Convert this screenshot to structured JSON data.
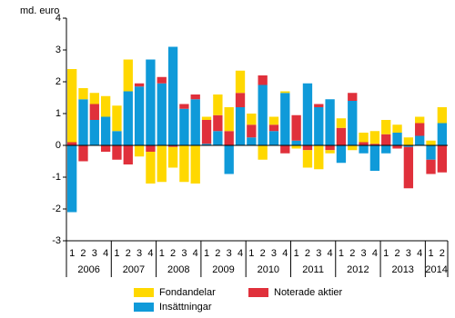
{
  "chart_data": {
    "type": "stacked-bar",
    "y_label": "md. euro",
    "categories": [
      "1",
      "2",
      "3",
      "4",
      "1",
      "2",
      "3",
      "4",
      "1",
      "2",
      "3",
      "4",
      "1",
      "2",
      "3",
      "4",
      "1",
      "2",
      "3",
      "4",
      "1",
      "2",
      "3",
      "4",
      "1",
      "2",
      "3",
      "4",
      "1",
      "2",
      "3",
      "4",
      "1",
      "2"
    ],
    "years": [
      "2006",
      "2007",
      "2008",
      "2009",
      "2010",
      "2011",
      "2012",
      "2013",
      "2014"
    ],
    "series": [
      {
        "name": "Insättningar",
        "color": "#0f9ad9",
        "values": [
          -2.1,
          1.45,
          0.8,
          0.9,
          0.45,
          1.7,
          1.85,
          2.7,
          1.95,
          3.1,
          1.15,
          1.45,
          0.05,
          0.45,
          -0.9,
          1.2,
          0.25,
          1.9,
          0.45,
          1.65,
          0.15,
          1.95,
          1.2,
          1.45,
          -0.55,
          1.4,
          -0.25,
          -0.8,
          -0.25,
          0.4,
          -0.05,
          0.3,
          -0.45,
          0.7
        ]
      },
      {
        "name": "Noterade aktier",
        "color": "#e0303b",
        "values": [
          0.1,
          -0.5,
          0.5,
          -0.2,
          -0.45,
          -0.6,
          0.1,
          -0.2,
          0.2,
          -0.05,
          0.15,
          0.15,
          0.75,
          0.5,
          0.45,
          0.45,
          0.4,
          0.3,
          0.2,
          -0.25,
          0.8,
          -0.15,
          0.1,
          -0.15,
          0.55,
          0.25,
          0.1,
          0.05,
          0.35,
          -0.1,
          -1.3,
          0.4,
          -0.45,
          -0.85
        ]
      },
      {
        "name": "Fondandelar",
        "color": "#ffd800",
        "values": [
          2.3,
          0.35,
          0.35,
          0.65,
          0.8,
          1.0,
          -0.35,
          -1.0,
          -1.15,
          -0.65,
          -1.15,
          -1.2,
          0.1,
          0.65,
          0.75,
          0.7,
          0.35,
          -0.45,
          0.25,
          0.05,
          -0.1,
          -0.55,
          -0.75,
          -0.1,
          0.3,
          -0.15,
          0.3,
          0.4,
          0.45,
          0.25,
          0.25,
          0.2,
          0.15,
          0.5
        ]
      }
    ],
    "ylim": [
      -3,
      4
    ],
    "yticks": [
      -3,
      -2,
      -1,
      0,
      1,
      2,
      3,
      4
    ]
  }
}
